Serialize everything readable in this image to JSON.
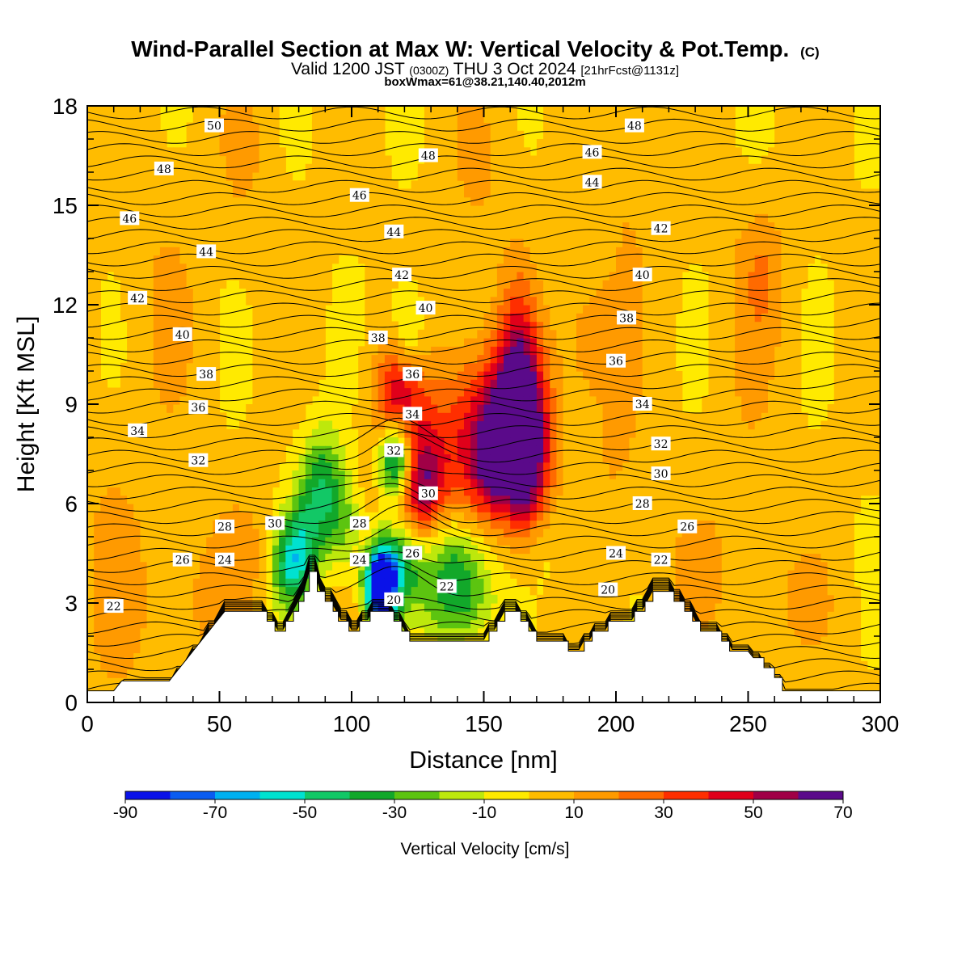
{
  "title": "Wind-Parallel Section at Max W: Vertical Velocity & Pot.Temp.",
  "title_mark": "(C)",
  "subtitle_main": "Valid 1200 JST",
  "subtitle_utc": "(0300Z)",
  "subtitle_date": "THU 3 Oct 2024",
  "subtitle_fcst": "[21hrFcst@1131z]",
  "subtitle2": "boxWmax=61@38.21,140.40,2012m",
  "chart_data": {
    "type": "heatmap",
    "xlabel": "Distance [nm]",
    "ylabel": "Height [Kft MSL]",
    "xlim": [
      0,
      300
    ],
    "ylim": [
      0,
      18
    ],
    "x_ticks": [
      "0",
      "50",
      "100",
      "150",
      "200",
      "250",
      "300"
    ],
    "y_ticks": [
      "0",
      "3",
      "6",
      "9",
      "12",
      "15",
      "18"
    ],
    "colorbar": {
      "title": "Vertical Velocity [cm/s]",
      "tick_labels": [
        "-90",
        "-70",
        "-50",
        "-30",
        "-10",
        "10",
        "30",
        "50",
        "70"
      ],
      "range": [
        -90,
        70
      ],
      "colors": [
        "#0a12e8",
        "#0a5cf0",
        "#00b0f0",
        "#00e2d0",
        "#12c866",
        "#12a82a",
        "#5cc410",
        "#bde80c",
        "#ffea00",
        "#ffbc00",
        "#ff9a00",
        "#ff6a00",
        "#ff2e00",
        "#e0001a",
        "#a00046",
        "#5a0a8a"
      ]
    },
    "fields": [
      {
        "name": "Vertical Velocity",
        "units": "cm/s",
        "style": "filled"
      },
      {
        "name": "Potential Temperature",
        "style": "contour lines"
      }
    ],
    "contour_labels": [
      {
        "text": "50",
        "x": 48,
        "y": 17.4
      },
      {
        "text": "48",
        "x": 29,
        "y": 16.1
      },
      {
        "text": "46",
        "x": 16,
        "y": 14.6
      },
      {
        "text": "44",
        "x": 45,
        "y": 13.6
      },
      {
        "text": "42",
        "x": 19,
        "y": 12.2
      },
      {
        "text": "40",
        "x": 36,
        "y": 11.1
      },
      {
        "text": "38",
        "x": 45,
        "y": 9.9
      },
      {
        "text": "36",
        "x": 42,
        "y": 8.9
      },
      {
        "text": "34",
        "x": 19,
        "y": 8.2
      },
      {
        "text": "32",
        "x": 42,
        "y": 7.3
      },
      {
        "text": "30",
        "x": 71,
        "y": 5.4
      },
      {
        "text": "28",
        "x": 52,
        "y": 5.3
      },
      {
        "text": "26",
        "x": 36,
        "y": 4.3
      },
      {
        "text": "24",
        "x": 52,
        "y": 4.3
      },
      {
        "text": "22",
        "x": 10,
        "y": 2.9
      },
      {
        "text": "48",
        "x": 129,
        "y": 16.5
      },
      {
        "text": "46",
        "x": 103,
        "y": 15.3
      },
      {
        "text": "44",
        "x": 116,
        "y": 14.2
      },
      {
        "text": "42",
        "x": 119,
        "y": 12.9
      },
      {
        "text": "40",
        "x": 128,
        "y": 11.9
      },
      {
        "text": "38",
        "x": 110,
        "y": 11.0
      },
      {
        "text": "36",
        "x": 123,
        "y": 9.9
      },
      {
        "text": "34",
        "x": 123,
        "y": 8.7
      },
      {
        "text": "32",
        "x": 116,
        "y": 7.6
      },
      {
        "text": "30",
        "x": 129,
        "y": 6.3
      },
      {
        "text": "28",
        "x": 103,
        "y": 5.4
      },
      {
        "text": "24",
        "x": 103,
        "y": 4.3
      },
      {
        "text": "26",
        "x": 123,
        "y": 4.5
      },
      {
        "text": "20",
        "x": 116,
        "y": 3.1
      },
      {
        "text": "22",
        "x": 136,
        "y": 3.5
      },
      {
        "text": "48",
        "x": 207,
        "y": 17.4
      },
      {
        "text": "46",
        "x": 191,
        "y": 16.6
      },
      {
        "text": "44",
        "x": 191,
        "y": 15.7
      },
      {
        "text": "42",
        "x": 217,
        "y": 14.3
      },
      {
        "text": "40",
        "x": 210,
        "y": 12.9
      },
      {
        "text": "38",
        "x": 204,
        "y": 11.6
      },
      {
        "text": "36",
        "x": 200,
        "y": 10.3
      },
      {
        "text": "34",
        "x": 210,
        "y": 9.0
      },
      {
        "text": "32",
        "x": 217,
        "y": 7.8
      },
      {
        "text": "30",
        "x": 217,
        "y": 6.9
      },
      {
        "text": "28",
        "x": 210,
        "y": 6.0
      },
      {
        "text": "26",
        "x": 227,
        "y": 5.3
      },
      {
        "text": "24",
        "x": 200,
        "y": 4.5
      },
      {
        "text": "22",
        "x": 217,
        "y": 4.3
      },
      {
        "text": "20",
        "x": 197,
        "y": 3.4
      }
    ]
  }
}
